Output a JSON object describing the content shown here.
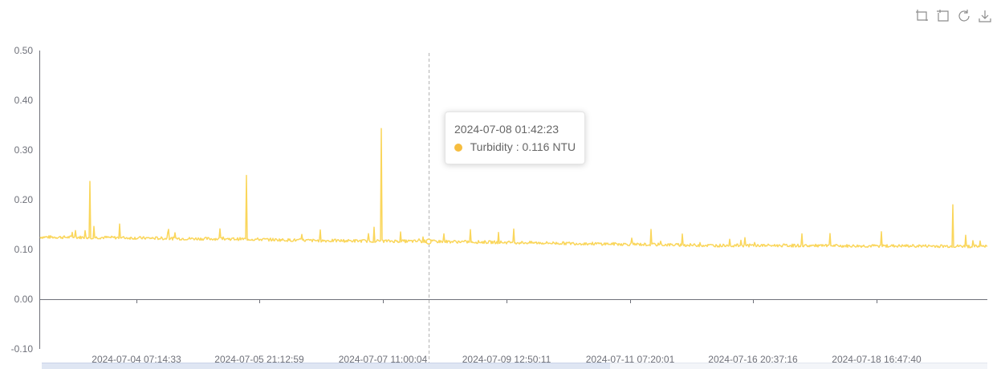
{
  "toolbox": {
    "icons": [
      "zoom-area-icon",
      "zoom-reset-icon",
      "restore-icon",
      "download-icon"
    ]
  },
  "tooltip": {
    "time": "2024-07-08 01:42:23",
    "label": "Turbidity : 0.116 NTU",
    "dot_color": "#f6bd3f"
  },
  "chart_data": {
    "type": "line",
    "line_color": "#fad65b",
    "series": [
      {
        "values_approx_baseline": [
          0.125,
          0.124,
          0.122,
          0.121,
          0.118,
          0.117,
          0.116,
          0.114,
          0.112,
          0.11,
          0.108,
          0.108,
          0.107,
          0.107,
          0.106
        ],
        "spikes": [
          0.237,
          0.249,
          0.343,
          0.19
        ]
      }
    ],
    "x_tick_labels": [
      "2024-07-04 07:14:33",
      "2024-07-05 21:12:59",
      "2024-07-07 11:00:04",
      "2024-07-09 12:50:11",
      "2024-07-11 07:20:01",
      "2024-07-16 20:37:16",
      "2024-07-18 16:47:40"
    ],
    "y_tick_labels": [
      "0.50",
      "0.40",
      "0.30",
      "0.20",
      "0.10",
      "0.00",
      "-0.10"
    ],
    "ylim": [
      -0.1,
      0.5
    ],
    "hover_value": 0.116,
    "grid": false,
    "legend": "none"
  }
}
